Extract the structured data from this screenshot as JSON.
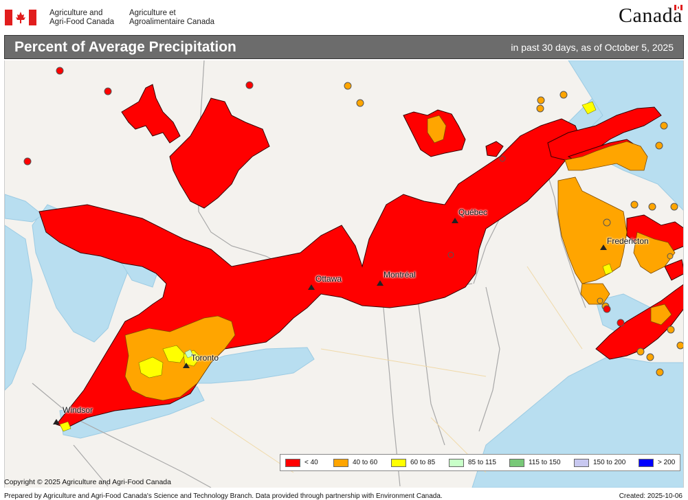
{
  "header": {
    "org_en_line1": "Agriculture and",
    "org_en_line2": "Agri-Food Canada",
    "org_fr_line1": "Agriculture et",
    "org_fr_line2": "Agroalimentaire Canada",
    "wordmark": "Canada"
  },
  "titlebar": {
    "title": "Percent of Average Precipitation",
    "subtitle": "in past 30 days, as of October 5, 2025"
  },
  "cities": [
    {
      "name": "Ottawa"
    },
    {
      "name": "Montréal"
    },
    {
      "name": "Québec"
    },
    {
      "name": "Toronto"
    },
    {
      "name": "Windsor"
    },
    {
      "name": "Fredericton"
    }
  ],
  "legend": [
    {
      "label": "< 40",
      "color": "#ff0000"
    },
    {
      "label": "40 to 60",
      "color": "#ffa500"
    },
    {
      "label": "60 to 85",
      "color": "#ffff00"
    },
    {
      "label": "85 to 115",
      "color": "#c8ffc8"
    },
    {
      "label": "115 to 150",
      "color": "#78c878"
    },
    {
      "label": "150 to 200",
      "color": "#c8c8f0"
    },
    {
      "label": "> 200",
      "color": "#0000ff"
    }
  ],
  "footer": {
    "copyright": "Copyright © 2025 Agriculture and Agri-Food Canada",
    "prepared": "Prepared by Agriculture and Agri-Food Canada's Science and Technology Branch. Data provided through partnership with Environment Canada.",
    "created": "Created: 2025-10-06"
  },
  "colors": {
    "water": "#b8def0",
    "land": "#f4f2ee",
    "titlebar": "#6c6c6c"
  }
}
